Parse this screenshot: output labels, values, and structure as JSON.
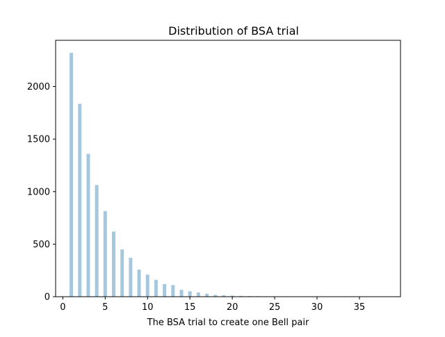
{
  "chart_data": {
    "type": "bar",
    "title": "Distribution of BSA trial",
    "xlabel": "The BSA trial to create one Bell pair",
    "ylabel": "",
    "xlim": [
      -0.85,
      39.85
    ],
    "ylim": [
      0,
      2440
    ],
    "xticks": [
      0,
      5,
      10,
      15,
      20,
      25,
      30,
      35
    ],
    "yticks": [
      0,
      500,
      1000,
      1500,
      2000
    ],
    "grid": false,
    "bar_color": "#a6c8de",
    "series": [
      {
        "x": [
          1,
          2,
          3,
          4,
          5,
          6,
          7,
          8,
          9,
          10,
          11,
          12,
          13,
          14,
          15,
          16,
          17,
          18,
          19,
          20,
          21,
          22,
          23,
          24,
          25
        ],
        "values": [
          2320,
          1835,
          1360,
          1063,
          815,
          620,
          450,
          370,
          258,
          210,
          160,
          120,
          110,
          65,
          52,
          40,
          28,
          18,
          14,
          10,
          8,
          6,
          5,
          4,
          3
        ]
      }
    ]
  }
}
